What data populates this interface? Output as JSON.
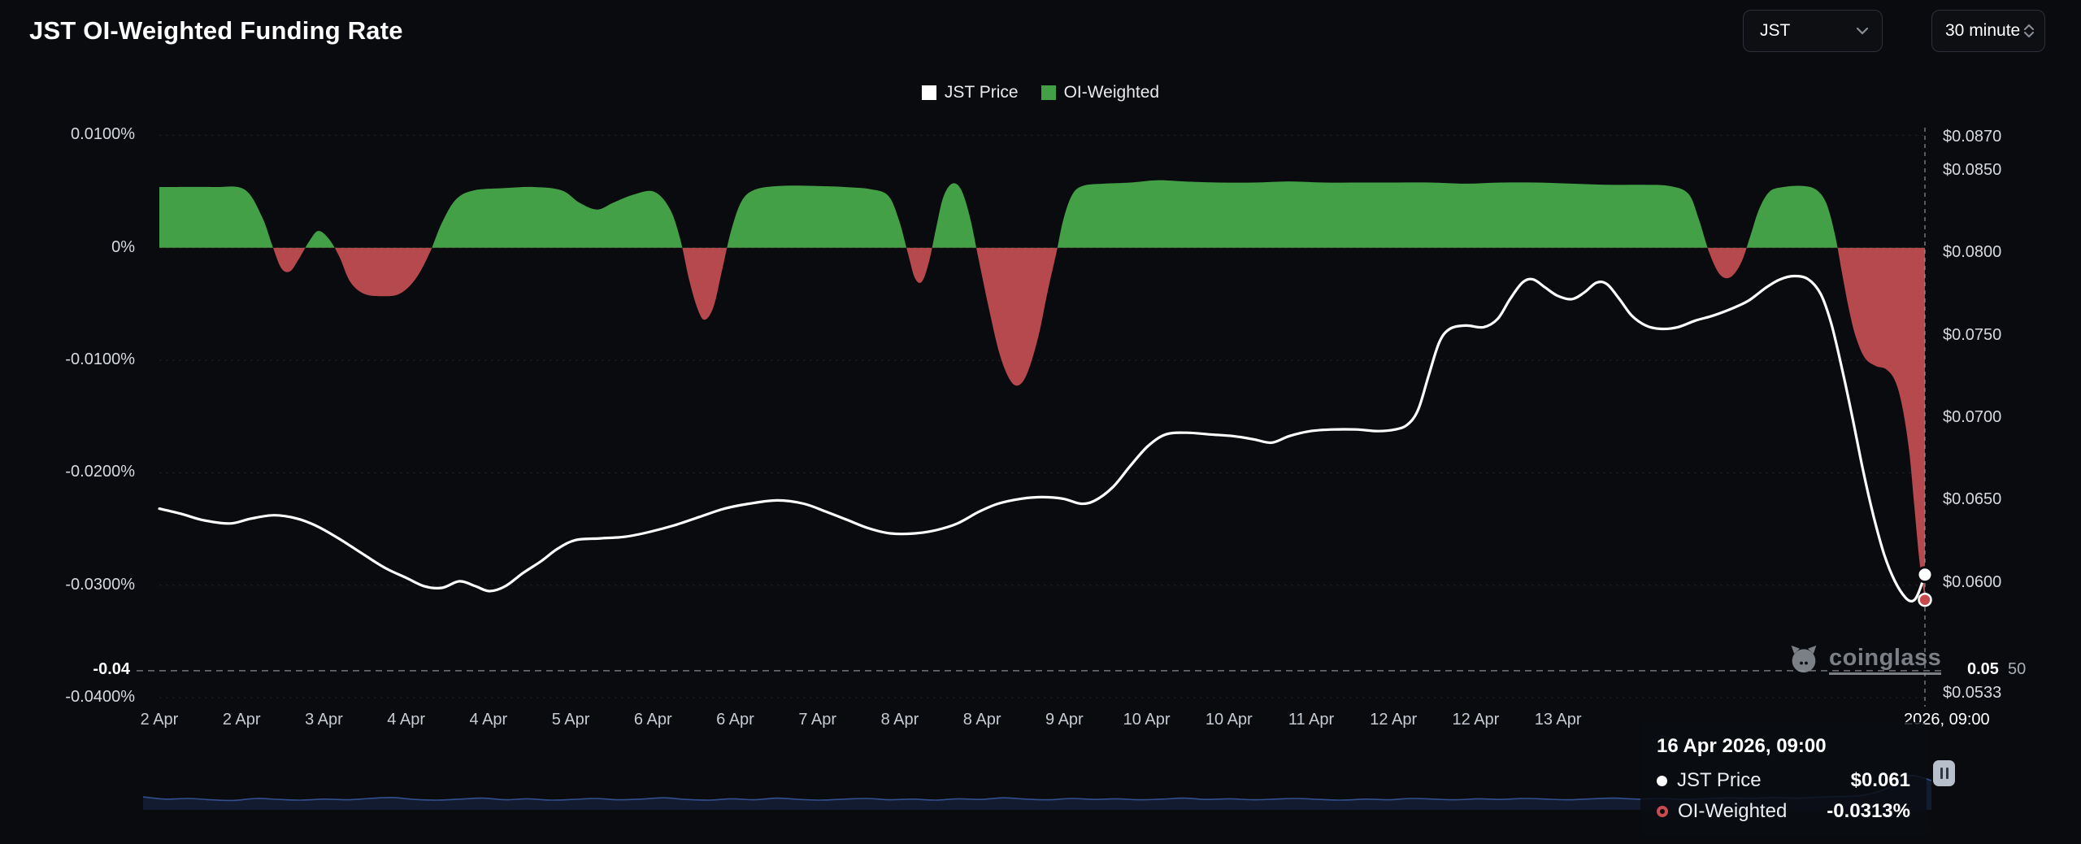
{
  "header": {
    "title": "JST OI-Weighted Funding Rate"
  },
  "controls": {
    "symbol": "JST",
    "interval": "30 minute"
  },
  "legend": {
    "items": [
      {
        "label": "JST Price",
        "color": "#ffffff"
      },
      {
        "label": "OI-Weighted",
        "color": "#43a047"
      }
    ]
  },
  "watermark": {
    "text": "coinglass"
  },
  "tooltip": {
    "title": "16 Apr 2026, 09:00",
    "rows": [
      {
        "label": "JST Price",
        "value": "$0.061",
        "marker": "white-dot"
      },
      {
        "label": "OI-Weighted",
        "value": "-0.0313%",
        "marker": "red-ring"
      }
    ]
  },
  "chart_data": {
    "type": "area+line",
    "title": "JST OI-Weighted Funding Rate",
    "legend_position": "top-center",
    "grid": "faint-dashed-horizontal",
    "colors": {
      "positive": "#43a047",
      "negative": "#b5494d",
      "price_line": "#ffffff",
      "navigator_fill": "#121b30",
      "navigator_stroke": "#33508f",
      "red_marker": "#c6494e"
    },
    "funding_axis": {
      "max": 0.0101,
      "min": -0.0405,
      "ticks": [
        {
          "v": 0.01,
          "label": "0.0100%"
        },
        {
          "v": 0,
          "label": "0%"
        },
        {
          "v": -0.01,
          "label": "-0.0100%"
        },
        {
          "v": -0.02,
          "label": "-0.0200%"
        },
        {
          "v": -0.03,
          "label": "-0.0300%"
        },
        {
          "v": -0.04,
          "label": "-0.0400%"
        }
      ]
    },
    "price_axis": {
      "max": 0.0872,
      "min": 0.0527,
      "ticks": [
        {
          "v": 0.087,
          "label": "$0.0870"
        },
        {
          "v": 0.085,
          "label": "$0.0850"
        },
        {
          "v": 0.08,
          "label": "$0.0800"
        },
        {
          "v": 0.075,
          "label": "$0.0750"
        },
        {
          "v": 0.07,
          "label": "$0.0700"
        },
        {
          "v": 0.065,
          "label": "$0.0650"
        },
        {
          "v": 0.06,
          "label": "$0.0600"
        },
        {
          "v": 0.0533,
          "label": "$0.0533"
        }
      ]
    },
    "x_axis": {
      "labels": [
        "2 Apr",
        "2 Apr",
        "3 Apr",
        "4 Apr",
        "4 Apr",
        "5 Apr",
        "6 Apr",
        "6 Apr",
        "7 Apr",
        "8 Apr",
        "8 Apr",
        "9 Apr",
        "10 Apr",
        "10 Apr",
        "11 Apr",
        "12 Apr",
        "12 Apr",
        "13 Apr"
      ],
      "step_frac": 0.0466,
      "cursor_label": "2026, 09:00"
    },
    "annotations": {
      "hline_value": -0.0376,
      "hline_left_label": "-0.04",
      "hline_right_label": "0.05",
      "hline_right_label2": "50",
      "vline_frac": 1.0
    },
    "series": [
      {
        "name": "OI-Weighted",
        "type": "area",
        "axis": "funding",
        "points": [
          [
            0,
            0.0054
          ],
          [
            0.03,
            0.0054
          ],
          [
            0.048,
            0.0052
          ],
          [
            0.058,
            0.0028
          ],
          [
            0.064,
            0.0002
          ],
          [
            0.069,
            -0.0018
          ],
          [
            0.074,
            -0.0021
          ],
          [
            0.079,
            -0.001
          ],
          [
            0.085,
            0.0006
          ],
          [
            0.09,
            0.0015
          ],
          [
            0.096,
            0.0008
          ],
          [
            0.102,
            -0.0008
          ],
          [
            0.108,
            -0.003
          ],
          [
            0.116,
            -0.0041
          ],
          [
            0.126,
            -0.0043
          ],
          [
            0.136,
            -0.0041
          ],
          [
            0.145,
            -0.0028
          ],
          [
            0.153,
            -0.0005
          ],
          [
            0.16,
            0.0022
          ],
          [
            0.168,
            0.0043
          ],
          [
            0.178,
            0.0051
          ],
          [
            0.195,
            0.0053
          ],
          [
            0.212,
            0.0054
          ],
          [
            0.228,
            0.0051
          ],
          [
            0.238,
            0.004
          ],
          [
            0.248,
            0.0034
          ],
          [
            0.257,
            0.004
          ],
          [
            0.268,
            0.0047
          ],
          [
            0.28,
            0.005
          ],
          [
            0.289,
            0.0035
          ],
          [
            0.295,
            0.0008
          ],
          [
            0.3,
            -0.0028
          ],
          [
            0.305,
            -0.0055
          ],
          [
            0.309,
            -0.0064
          ],
          [
            0.314,
            -0.0052
          ],
          [
            0.319,
            -0.0018
          ],
          [
            0.324,
            0.0016
          ],
          [
            0.33,
            0.0042
          ],
          [
            0.338,
            0.0052
          ],
          [
            0.352,
            0.0055
          ],
          [
            0.37,
            0.0055
          ],
          [
            0.388,
            0.0054
          ],
          [
            0.403,
            0.0052
          ],
          [
            0.413,
            0.0046
          ],
          [
            0.419,
            0.0024
          ],
          [
            0.424,
            -0.0005
          ],
          [
            0.428,
            -0.0027
          ],
          [
            0.432,
            -0.003
          ],
          [
            0.436,
            -0.0012
          ],
          [
            0.44,
            0.0018
          ],
          [
            0.444,
            0.0045
          ],
          [
            0.449,
            0.0057
          ],
          [
            0.454,
            0.0052
          ],
          [
            0.459,
            0.0028
          ],
          [
            0.464,
            -0.001
          ],
          [
            0.47,
            -0.0055
          ],
          [
            0.476,
            -0.0095
          ],
          [
            0.482,
            -0.0118
          ],
          [
            0.487,
            -0.0122
          ],
          [
            0.492,
            -0.011
          ],
          [
            0.498,
            -0.0078
          ],
          [
            0.503,
            -0.004
          ],
          [
            0.508,
            -0.0005
          ],
          [
            0.512,
            0.0025
          ],
          [
            0.517,
            0.0047
          ],
          [
            0.523,
            0.0055
          ],
          [
            0.535,
            0.0057
          ],
          [
            0.55,
            0.0058
          ],
          [
            0.565,
            0.006
          ],
          [
            0.58,
            0.0059
          ],
          [
            0.6,
            0.0058
          ],
          [
            0.62,
            0.0058
          ],
          [
            0.64,
            0.0059
          ],
          [
            0.66,
            0.0058
          ],
          [
            0.68,
            0.0058
          ],
          [
            0.7,
            0.0058
          ],
          [
            0.72,
            0.0058
          ],
          [
            0.74,
            0.0057
          ],
          [
            0.76,
            0.0058
          ],
          [
            0.78,
            0.0058
          ],
          [
            0.8,
            0.0057
          ],
          [
            0.82,
            0.0056
          ],
          [
            0.84,
            0.0056
          ],
          [
            0.855,
            0.0055
          ],
          [
            0.866,
            0.0048
          ],
          [
            0.872,
            0.0025
          ],
          [
            0.878,
            -0.0005
          ],
          [
            0.884,
            -0.0024
          ],
          [
            0.89,
            -0.0026
          ],
          [
            0.896,
            -0.0013
          ],
          [
            0.901,
            0.001
          ],
          [
            0.906,
            0.0034
          ],
          [
            0.912,
            0.005
          ],
          [
            0.92,
            0.0054
          ],
          [
            0.93,
            0.0055
          ],
          [
            0.938,
            0.0052
          ],
          [
            0.944,
            0.004
          ],
          [
            0.949,
            0.0012
          ],
          [
            0.953,
            -0.0022
          ],
          [
            0.957,
            -0.0055
          ],
          [
            0.961,
            -0.008
          ],
          [
            0.966,
            -0.0098
          ],
          [
            0.972,
            -0.0105
          ],
          [
            0.978,
            -0.0108
          ],
          [
            0.983,
            -0.0118
          ],
          [
            0.987,
            -0.014
          ],
          [
            0.991,
            -0.018
          ],
          [
            0.994,
            -0.023
          ],
          [
            0.997,
            -0.028
          ],
          [
            1,
            -0.0313
          ]
        ]
      },
      {
        "name": "JST Price",
        "type": "line",
        "axis": "price",
        "points": [
          [
            0,
            0.0645
          ],
          [
            0.012,
            0.0642
          ],
          [
            0.025,
            0.0638
          ],
          [
            0.04,
            0.0636
          ],
          [
            0.052,
            0.0639
          ],
          [
            0.065,
            0.0641
          ],
          [
            0.078,
            0.0639
          ],
          [
            0.09,
            0.0634
          ],
          [
            0.103,
            0.0626
          ],
          [
            0.116,
            0.0617
          ],
          [
            0.128,
            0.0609
          ],
          [
            0.14,
            0.0603
          ],
          [
            0.15,
            0.0598
          ],
          [
            0.16,
            0.0597
          ],
          [
            0.17,
            0.0601
          ],
          [
            0.179,
            0.0598
          ],
          [
            0.187,
            0.0595
          ],
          [
            0.196,
            0.0598
          ],
          [
            0.206,
            0.0606
          ],
          [
            0.216,
            0.0613
          ],
          [
            0.226,
            0.0621
          ],
          [
            0.236,
            0.0626
          ],
          [
            0.25,
            0.0627
          ],
          [
            0.264,
            0.0628
          ],
          [
            0.278,
            0.0631
          ],
          [
            0.292,
            0.0635
          ],
          [
            0.306,
            0.064
          ],
          [
            0.32,
            0.0645
          ],
          [
            0.334,
            0.0648
          ],
          [
            0.35,
            0.065
          ],
          [
            0.365,
            0.0648
          ],
          [
            0.378,
            0.0643
          ],
          [
            0.39,
            0.0638
          ],
          [
            0.402,
            0.0633
          ],
          [
            0.414,
            0.063
          ],
          [
            0.428,
            0.063
          ],
          [
            0.44,
            0.0632
          ],
          [
            0.452,
            0.0636
          ],
          [
            0.464,
            0.0643
          ],
          [
            0.475,
            0.0648
          ],
          [
            0.488,
            0.0651
          ],
          [
            0.5,
            0.0652
          ],
          [
            0.512,
            0.0651
          ],
          [
            0.522,
            0.0648
          ],
          [
            0.53,
            0.065
          ],
          [
            0.54,
            0.0658
          ],
          [
            0.55,
            0.0671
          ],
          [
            0.56,
            0.0683
          ],
          [
            0.57,
            0.069
          ],
          [
            0.582,
            0.0691
          ],
          [
            0.595,
            0.069
          ],
          [
            0.608,
            0.0689
          ],
          [
            0.62,
            0.0687
          ],
          [
            0.63,
            0.0685
          ],
          [
            0.64,
            0.0689
          ],
          [
            0.652,
            0.0692
          ],
          [
            0.665,
            0.0693
          ],
          [
            0.678,
            0.0693
          ],
          [
            0.69,
            0.0692
          ],
          [
            0.7,
            0.0693
          ],
          [
            0.707,
            0.0696
          ],
          [
            0.713,
            0.0705
          ],
          [
            0.719,
            0.0726
          ],
          [
            0.725,
            0.0746
          ],
          [
            0.731,
            0.0754
          ],
          [
            0.74,
            0.0756
          ],
          [
            0.75,
            0.0755
          ],
          [
            0.758,
            0.076
          ],
          [
            0.765,
            0.0772
          ],
          [
            0.772,
            0.0782
          ],
          [
            0.778,
            0.0784
          ],
          [
            0.785,
            0.0779
          ],
          [
            0.792,
            0.0774
          ],
          [
            0.8,
            0.0772
          ],
          [
            0.807,
            0.0776
          ],
          [
            0.814,
            0.0782
          ],
          [
            0.82,
            0.0781
          ],
          [
            0.827,
            0.0772
          ],
          [
            0.834,
            0.0762
          ],
          [
            0.842,
            0.0756
          ],
          [
            0.85,
            0.0754
          ],
          [
            0.86,
            0.0755
          ],
          [
            0.87,
            0.0759
          ],
          [
            0.88,
            0.0762
          ],
          [
            0.89,
            0.0766
          ],
          [
            0.9,
            0.0771
          ],
          [
            0.91,
            0.0779
          ],
          [
            0.918,
            0.0784
          ],
          [
            0.926,
            0.0786
          ],
          [
            0.934,
            0.0784
          ],
          [
            0.941,
            0.0775
          ],
          [
            0.947,
            0.0757
          ],
          [
            0.953,
            0.073
          ],
          [
            0.959,
            0.07
          ],
          [
            0.965,
            0.0668
          ],
          [
            0.971,
            0.064
          ],
          [
            0.977,
            0.0617
          ],
          [
            0.983,
            0.0601
          ],
          [
            0.989,
            0.0591
          ],
          [
            0.993,
            0.0589
          ],
          [
            0.996,
            0.0593
          ],
          [
            1,
            0.0605
          ]
        ]
      }
    ],
    "end_markers": [
      {
        "axis": "price",
        "value": 0.0605,
        "style": "white-dot"
      },
      {
        "axis": "funding",
        "value": -0.0313,
        "style": "red-dot"
      }
    ],
    "navigator": {
      "values": [
        0.35,
        0.28,
        0.3,
        0.26,
        0.24,
        0.3,
        0.27,
        0.25,
        0.28,
        0.26,
        0.3,
        0.33,
        0.27,
        0.25,
        0.28,
        0.31,
        0.26,
        0.29,
        0.25,
        0.27,
        0.3,
        0.26,
        0.28,
        0.32,
        0.27,
        0.25,
        0.29,
        0.26,
        0.31,
        0.27,
        0.25,
        0.28,
        0.3,
        0.26,
        0.28,
        0.25,
        0.29,
        0.27,
        0.32,
        0.28,
        0.26,
        0.3,
        0.27,
        0.29,
        0.26,
        0.28,
        0.31,
        0.27,
        0.29,
        0.26,
        0.28,
        0.3,
        0.27,
        0.25,
        0.28,
        0.26,
        0.3,
        0.28,
        0.26,
        0.29,
        0.27,
        0.3,
        0.28,
        0.26,
        0.29,
        0.31,
        0.28,
        0.3,
        0.27,
        0.29,
        0.32,
        0.3,
        0.33,
        0.31,
        0.34,
        0.36,
        0.4,
        0.6,
        1.0,
        0.85
      ]
    }
  }
}
